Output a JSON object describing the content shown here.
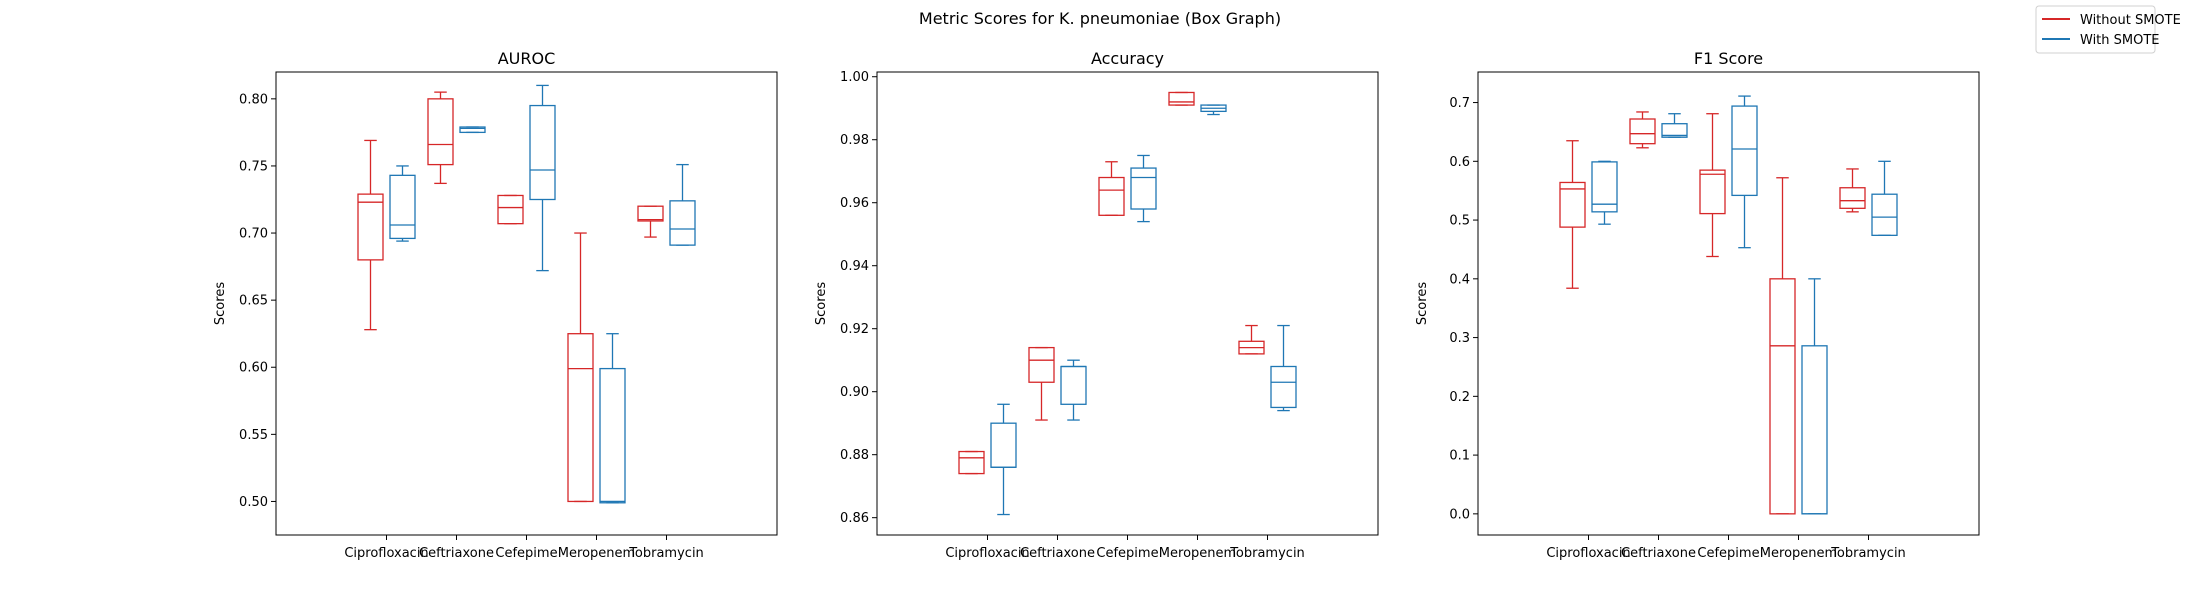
{
  "figure_title": "Metric Scores for K. pneumoniae (Box Graph)",
  "legend": [
    {
      "label": "Without SMOTE",
      "color": "#d62728"
    },
    {
      "label": "With SMOTE",
      "color": "#1f77b4"
    }
  ],
  "colors": {
    "without": "#d62728",
    "with": "#1f77b4"
  },
  "chart_data": [
    {
      "type": "box",
      "title": "AUROC",
      "ylabel": "Scores",
      "ylim": [
        0.475,
        0.82
      ],
      "yticks": [
        "0.50",
        "0.55",
        "0.60",
        "0.65",
        "0.70",
        "0.75",
        "0.80"
      ],
      "categories": [
        "Ciprofloxacin",
        "Ceftriaxone",
        "Cefepime",
        "Meropenem",
        "Tobramycin"
      ],
      "series": [
        {
          "name": "Without SMOTE",
          "boxes": [
            {
              "min": 0.628,
              "q1": 0.68,
              "median": 0.723,
              "q3": 0.729,
              "max": 0.769
            },
            {
              "min": 0.737,
              "q1": 0.751,
              "median": 0.766,
              "q3": 0.8,
              "max": 0.805
            },
            {
              "min": 0.707,
              "q1": 0.707,
              "median": 0.719,
              "q3": 0.728,
              "max": 0.728
            },
            {
              "min": 0.5,
              "q1": 0.5,
              "median": 0.599,
              "q3": 0.625,
              "max": 0.7
            },
            {
              "min": 0.697,
              "q1": 0.709,
              "median": 0.71,
              "q3": 0.72,
              "max": 0.72
            }
          ]
        },
        {
          "name": "With SMOTE",
          "boxes": [
            {
              "min": 0.694,
              "q1": 0.696,
              "median": 0.706,
              "q3": 0.743,
              "max": 0.75
            },
            {
              "min": 0.775,
              "q1": 0.775,
              "median": 0.778,
              "q3": 0.779,
              "max": 0.779
            },
            {
              "min": 0.672,
              "q1": 0.725,
              "median": 0.747,
              "q3": 0.795,
              "max": 0.81
            },
            {
              "min": 0.499,
              "q1": 0.499,
              "median": 0.5,
              "q3": 0.599,
              "max": 0.625
            },
            {
              "min": 0.691,
              "q1": 0.691,
              "median": 0.703,
              "q3": 0.724,
              "max": 0.751
            }
          ]
        }
      ]
    },
    {
      "type": "box",
      "title": "Accuracy",
      "ylabel": "Scores",
      "ylim": [
        0.8545,
        1.0015
      ],
      "yticks": [
        "0.86",
        "0.88",
        "0.90",
        "0.92",
        "0.94",
        "0.96",
        "0.98",
        "1.00"
      ],
      "categories": [
        "Ciprofloxacin",
        "Ceftriaxone",
        "Cefepime",
        "Meropenem",
        "Tobramycin"
      ],
      "series": [
        {
          "name": "Without SMOTE",
          "boxes": [
            {
              "min": 0.874,
              "q1": 0.874,
              "median": 0.879,
              "q3": 0.881,
              "max": 0.881
            },
            {
              "min": 0.891,
              "q1": 0.903,
              "median": 0.91,
              "q3": 0.914,
              "max": 0.914
            },
            {
              "min": 0.956,
              "q1": 0.956,
              "median": 0.964,
              "q3": 0.968,
              "max": 0.973
            },
            {
              "min": 0.991,
              "q1": 0.991,
              "median": 0.992,
              "q3": 0.995,
              "max": 0.995
            },
            {
              "min": 0.912,
              "q1": 0.912,
              "median": 0.914,
              "q3": 0.916,
              "max": 0.921
            }
          ]
        },
        {
          "name": "With SMOTE",
          "boxes": [
            {
              "min": 0.861,
              "q1": 0.876,
              "median": 0.876,
              "q3": 0.89,
              "max": 0.896
            },
            {
              "min": 0.891,
              "q1": 0.896,
              "median": 0.908,
              "q3": 0.908,
              "max": 0.91
            },
            {
              "min": 0.954,
              "q1": 0.958,
              "median": 0.968,
              "q3": 0.971,
              "max": 0.975
            },
            {
              "min": 0.988,
              "q1": 0.989,
              "median": 0.99,
              "q3": 0.991,
              "max": 0.991
            },
            {
              "min": 0.894,
              "q1": 0.895,
              "median": 0.903,
              "q3": 0.908,
              "max": 0.921
            }
          ]
        }
      ]
    },
    {
      "type": "box",
      "title": "F1 Score",
      "ylabel": "Scores",
      "ylim": [
        -0.036,
        0.752
      ],
      "yticks": [
        "0.0",
        "0.1",
        "0.2",
        "0.3",
        "0.4",
        "0.5",
        "0.6",
        "0.7"
      ],
      "categories": [
        "Ciprofloxacin",
        "Ceftriaxone",
        "Cefepime",
        "Meropenem",
        "Tobramycin"
      ],
      "series": [
        {
          "name": "Without SMOTE",
          "boxes": [
            {
              "min": 0.384,
              "q1": 0.488,
              "median": 0.553,
              "q3": 0.564,
              "max": 0.635
            },
            {
              "min": 0.623,
              "q1": 0.63,
              "median": 0.647,
              "q3": 0.672,
              "max": 0.684
            },
            {
              "min": 0.438,
              "q1": 0.511,
              "median": 0.578,
              "q3": 0.585,
              "max": 0.681
            },
            {
              "min": 0.0,
              "q1": 0.0,
              "median": 0.286,
              "q3": 0.4,
              "max": 0.572
            },
            {
              "min": 0.514,
              "q1": 0.52,
              "median": 0.533,
              "q3": 0.555,
              "max": 0.587
            }
          ]
        },
        {
          "name": "With SMOTE",
          "boxes": [
            {
              "min": 0.493,
              "q1": 0.514,
              "median": 0.527,
              "q3": 0.599,
              "max": 0.6
            },
            {
              "min": 0.641,
              "q1": 0.641,
              "median": 0.644,
              "q3": 0.664,
              "max": 0.681
            },
            {
              "min": 0.453,
              "q1": 0.542,
              "median": 0.621,
              "q3": 0.694,
              "max": 0.711
            },
            {
              "min": 0.0,
              "q1": 0.0,
              "median": 0.0,
              "q3": 0.286,
              "max": 0.4
            },
            {
              "min": 0.474,
              "q1": 0.474,
              "median": 0.505,
              "q3": 0.544,
              "max": 0.6
            }
          ]
        }
      ]
    }
  ]
}
